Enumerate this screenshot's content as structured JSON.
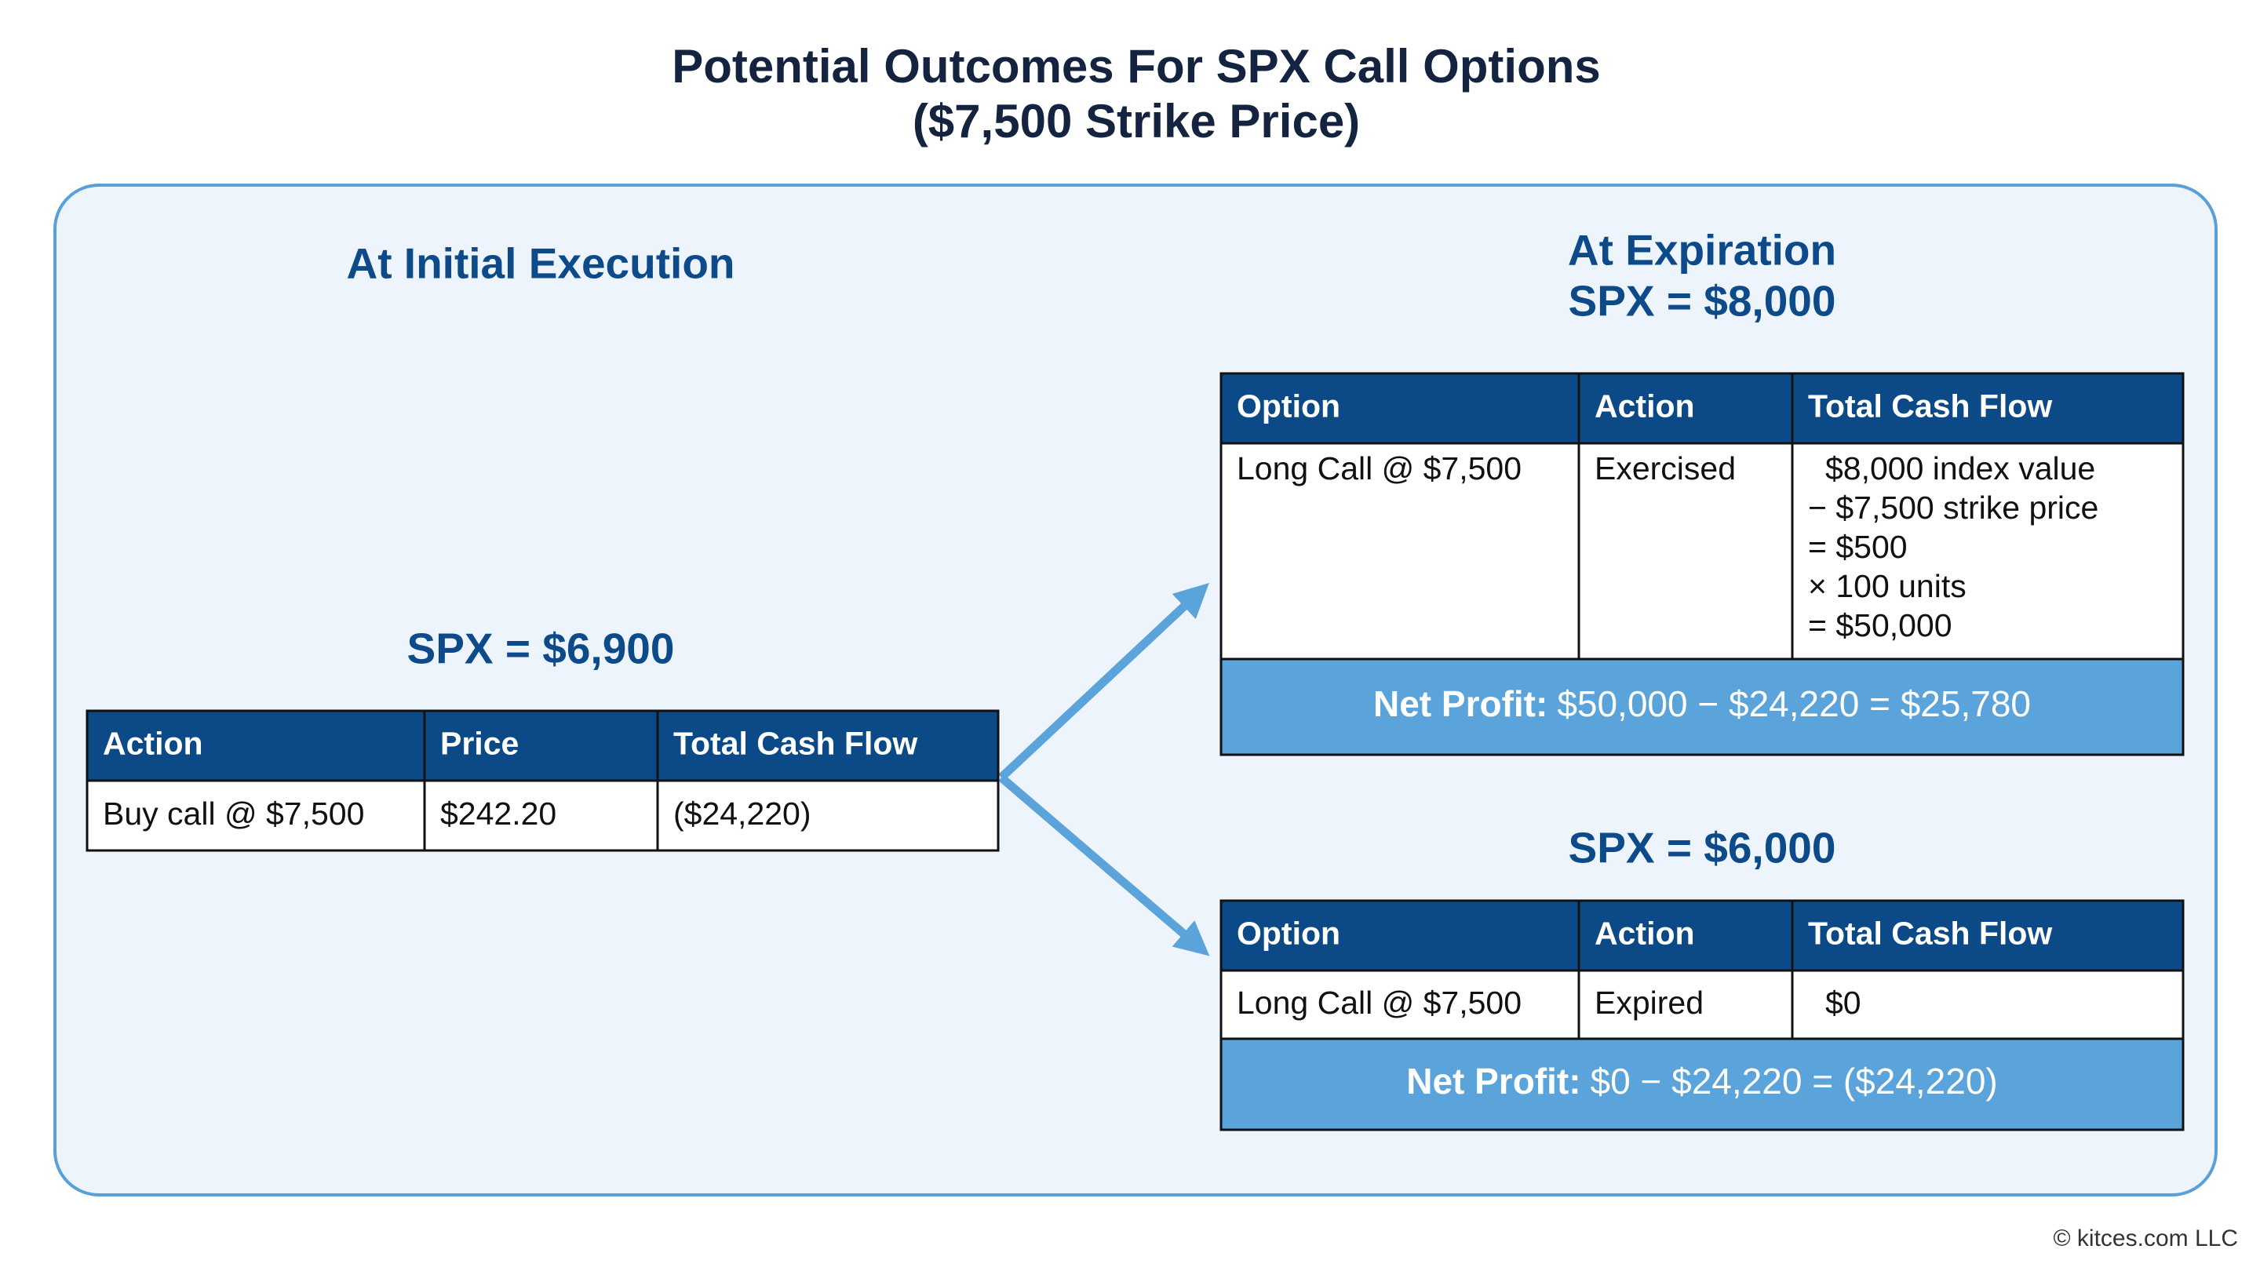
{
  "title": [
    "Potential Outcomes For SPX Call Options",
    "($7,500 Strike Price)"
  ],
  "initial": {
    "heading": "At Initial Execution",
    "spx": "SPX = $6,900",
    "headers": [
      "Action",
      "Price",
      "Total Cash Flow"
    ],
    "row": [
      "Buy call @ $7,500",
      "$242.20",
      "($24,220)"
    ]
  },
  "expiration_heading": "At Expiration",
  "scenarios": [
    {
      "spx": "SPX = $8,000",
      "headers": [
        "Option",
        "Action",
        "Total Cash Flow"
      ],
      "row": [
        "Long Call @ $7,500",
        "Exercised",
        [
          "$8,000 index value",
          "− $7,500 strike price",
          "= $500",
          "× 100 units",
          "= $50,000"
        ]
      ],
      "net_label": "Net Profit:",
      "net_value": "$50,000 − $24,220 = $25,780"
    },
    {
      "spx": "SPX = $6,000",
      "headers": [
        "Option",
        "Action",
        "Total Cash Flow"
      ],
      "row": [
        "Long Call @ $7,500",
        "Expired",
        [
          "$0"
        ]
      ],
      "net_label": "Net Profit:",
      "net_value": "$0 − $24,220 = ($24,220)"
    }
  ],
  "footer": "© kitces.com LLC"
}
